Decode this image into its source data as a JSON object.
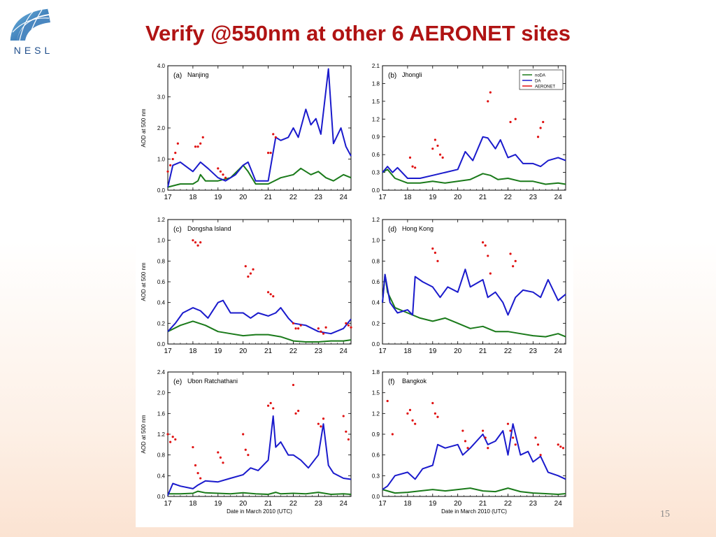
{
  "slide": {
    "title": "Verify @550nm at other 6 AERONET sites",
    "logo_text": "NESL",
    "page_number": "15"
  },
  "colors": {
    "title": "#b01313",
    "noDA": "#1a7a1a",
    "DA": "#1a1acc",
    "AERONET": "#e01010"
  },
  "chart_data": [
    {
      "type": "line",
      "panel": "(a)",
      "site": "Nanjing",
      "ylabel": "AOD at 500 nm",
      "xlabel": "",
      "ylim": [
        0,
        4
      ],
      "yticks": [
        0.0,
        1.0,
        2.0,
        3.0,
        4.0
      ],
      "xlim": [
        17,
        24.3
      ],
      "xticks": [
        17,
        18,
        19,
        20,
        21,
        22,
        23,
        24
      ],
      "show_legend": false,
      "series": [
        {
          "name": "noDA",
          "x": [
            17,
            17.5,
            18,
            18.2,
            18.3,
            18.5,
            19,
            19.5,
            20,
            20.2,
            20.5,
            21,
            21.5,
            22,
            22.3,
            22.7,
            23,
            23.3,
            23.6,
            24,
            24.3
          ],
          "y": [
            0.1,
            0.2,
            0.2,
            0.3,
            0.5,
            0.3,
            0.3,
            0.4,
            0.8,
            0.6,
            0.2,
            0.2,
            0.4,
            0.5,
            0.7,
            0.5,
            0.6,
            0.4,
            0.3,
            0.5,
            0.4
          ]
        },
        {
          "name": "DA",
          "x": [
            17,
            17.2,
            17.5,
            18,
            18.3,
            18.6,
            19,
            19.3,
            19.7,
            20,
            20.2,
            20.5,
            21,
            21.3,
            21.5,
            21.8,
            22,
            22.2,
            22.5,
            22.7,
            22.9,
            23.1,
            23.4,
            23.6,
            23.9,
            24.1,
            24.3
          ],
          "y": [
            0.1,
            0.8,
            0.9,
            0.6,
            0.9,
            0.7,
            0.4,
            0.3,
            0.5,
            0.8,
            0.9,
            0.3,
            0.3,
            1.7,
            1.6,
            1.7,
            2.0,
            1.7,
            2.6,
            2.1,
            2.3,
            1.8,
            3.9,
            1.5,
            2.0,
            1.4,
            1.1
          ]
        },
        {
          "name": "AERONET",
          "x": [
            17.0,
            17.1,
            17.2,
            17.3,
            17.4,
            18.1,
            18.2,
            18.3,
            18.4,
            19.0,
            19.1,
            19.2,
            19.3,
            21.0,
            21.1,
            21.2,
            21.3
          ],
          "y": [
            0.6,
            0.8,
            1.0,
            1.2,
            1.5,
            1.4,
            1.4,
            1.5,
            1.7,
            0.7,
            0.6,
            0.5,
            0.4,
            1.2,
            1.2,
            1.8,
            1.7
          ]
        }
      ]
    },
    {
      "type": "line",
      "panel": "(b)",
      "site": "Jhongli",
      "ylabel": "",
      "xlabel": "",
      "ylim": [
        0,
        2.1
      ],
      "yticks": [
        0.0,
        0.3,
        0.6,
        0.9,
        1.2,
        1.5,
        1.8,
        2.1
      ],
      "xlim": [
        17,
        24.3
      ],
      "xticks": [
        17,
        18,
        19,
        20,
        21,
        22,
        23,
        24
      ],
      "show_legend": true,
      "series": [
        {
          "name": "noDA",
          "x": [
            17,
            17.2,
            17.5,
            18,
            18.5,
            19,
            19.5,
            20,
            20.5,
            21,
            21.3,
            21.6,
            22,
            22.5,
            23,
            23.5,
            24,
            24.3
          ],
          "y": [
            0.3,
            0.35,
            0.2,
            0.12,
            0.12,
            0.15,
            0.12,
            0.15,
            0.18,
            0.28,
            0.25,
            0.18,
            0.2,
            0.15,
            0.15,
            0.1,
            0.12,
            0.1
          ]
        },
        {
          "name": "DA",
          "x": [
            17,
            17.2,
            17.4,
            17.6,
            18,
            18.5,
            19,
            19.5,
            20,
            20.3,
            20.6,
            21,
            21.2,
            21.5,
            21.7,
            22,
            22.3,
            22.6,
            23,
            23.3,
            23.6,
            24,
            24.3
          ],
          "y": [
            0.3,
            0.4,
            0.3,
            0.38,
            0.2,
            0.2,
            0.25,
            0.3,
            0.35,
            0.65,
            0.5,
            0.9,
            0.88,
            0.7,
            0.85,
            0.55,
            0.6,
            0.45,
            0.45,
            0.4,
            0.5,
            0.55,
            0.5
          ]
        },
        {
          "name": "AERONET",
          "x": [
            18.1,
            18.2,
            18.3,
            19.0,
            19.1,
            19.2,
            19.3,
            19.4,
            21.2,
            21.3,
            22.1,
            22.3,
            23.2,
            23.3,
            23.4
          ],
          "y": [
            0.55,
            0.4,
            0.38,
            0.7,
            0.85,
            0.75,
            0.6,
            0.55,
            1.5,
            1.65,
            1.15,
            1.2,
            0.9,
            1.05,
            1.15
          ]
        }
      ]
    },
    {
      "type": "line",
      "panel": "(c)",
      "site": "Dongsha Island",
      "ylabel": "AOD at 500 nm",
      "xlabel": "",
      "ylim": [
        0,
        1.2
      ],
      "yticks": [
        0.0,
        0.2,
        0.4,
        0.6,
        0.8,
        1.0,
        1.2
      ],
      "xlim": [
        17,
        24.3
      ],
      "xticks": [
        17,
        18,
        19,
        20,
        21,
        22,
        23,
        24
      ],
      "show_legend": false,
      "series": [
        {
          "name": "noDA",
          "x": [
            17,
            17.5,
            18,
            18.5,
            19,
            19.5,
            20,
            20.5,
            21,
            21.5,
            22,
            22.5,
            23,
            23.5,
            24,
            24.3
          ],
          "y": [
            0.12,
            0.18,
            0.22,
            0.18,
            0.12,
            0.1,
            0.08,
            0.09,
            0.09,
            0.07,
            0.03,
            0.02,
            0.02,
            0.03,
            0.03,
            0.04
          ]
        },
        {
          "name": "DA",
          "x": [
            17,
            17.3,
            17.6,
            18,
            18.3,
            18.6,
            19,
            19.2,
            19.5,
            20,
            20.3,
            20.6,
            21,
            21.3,
            21.5,
            21.8,
            22,
            22.5,
            23,
            23.5,
            24,
            24.3
          ],
          "y": [
            0.12,
            0.2,
            0.3,
            0.35,
            0.32,
            0.25,
            0.4,
            0.42,
            0.3,
            0.3,
            0.25,
            0.3,
            0.27,
            0.3,
            0.35,
            0.25,
            0.2,
            0.18,
            0.12,
            0.1,
            0.15,
            0.24
          ]
        },
        {
          "name": "AERONET",
          "x": [
            18.0,
            18.1,
            18.2,
            18.3,
            20.1,
            20.2,
            20.3,
            20.4,
            21.0,
            21.1,
            21.2,
            22.0,
            22.1,
            22.2,
            22.3,
            23.0,
            23.1,
            23.2,
            23.3,
            24.1,
            24.2,
            24.3
          ],
          "y": [
            1.0,
            0.98,
            0.95,
            0.98,
            0.75,
            0.65,
            0.68,
            0.72,
            0.5,
            0.48,
            0.46,
            0.2,
            0.15,
            0.15,
            0.18,
            0.15,
            0.12,
            0.1,
            0.16,
            0.2,
            0.18,
            0.16
          ]
        }
      ]
    },
    {
      "type": "line",
      "panel": "(d)",
      "site": "Hong Kong",
      "ylabel": "",
      "xlabel": "",
      "ylim": [
        0,
        1.2
      ],
      "yticks": [
        0.0,
        0.2,
        0.4,
        0.6,
        0.8,
        1.0,
        1.2
      ],
      "xlim": [
        17,
        24.3
      ],
      "xticks": [
        17,
        18,
        19,
        20,
        21,
        22,
        23,
        24
      ],
      "show_legend": false,
      "series": [
        {
          "name": "noDA",
          "x": [
            17,
            17.1,
            17.2,
            17.5,
            18,
            18.5,
            19,
            19.5,
            20,
            20.5,
            21,
            21.5,
            22,
            22.5,
            23,
            23.5,
            24,
            24.3
          ],
          "y": [
            0.4,
            0.67,
            0.5,
            0.35,
            0.3,
            0.25,
            0.22,
            0.25,
            0.2,
            0.15,
            0.17,
            0.12,
            0.12,
            0.1,
            0.08,
            0.07,
            0.1,
            0.07
          ]
        },
        {
          "name": "DA",
          "x": [
            17,
            17.1,
            17.3,
            17.6,
            18,
            18.2,
            18.3,
            18.6,
            19,
            19.3,
            19.6,
            20,
            20.3,
            20.5,
            21,
            21.2,
            21.5,
            21.8,
            22,
            22.3,
            22.6,
            23,
            23.3,
            23.6,
            24,
            24.3
          ],
          "y": [
            0.4,
            0.67,
            0.4,
            0.3,
            0.33,
            0.28,
            0.65,
            0.6,
            0.55,
            0.45,
            0.55,
            0.5,
            0.72,
            0.55,
            0.62,
            0.45,
            0.5,
            0.4,
            0.28,
            0.45,
            0.52,
            0.5,
            0.45,
            0.62,
            0.42,
            0.48
          ]
        },
        {
          "name": "AERONET",
          "x": [
            19.0,
            19.1,
            19.2,
            21.0,
            21.1,
            21.2,
            21.3,
            22.1,
            22.2,
            22.3
          ],
          "y": [
            0.92,
            0.88,
            0.8,
            0.98,
            0.95,
            0.85,
            0.68,
            0.87,
            0.75,
            0.8
          ]
        }
      ]
    },
    {
      "type": "line",
      "panel": "(e)",
      "site": "Ubon Ratchathani",
      "ylabel": "AOD at 500 nm",
      "xlabel": "Date in March 2010 (UTC)",
      "ylim": [
        0,
        2.4
      ],
      "yticks": [
        0.0,
        0.4,
        0.8,
        1.2,
        1.6,
        2.0,
        2.4
      ],
      "xlim": [
        17,
        24.3
      ],
      "xticks": [
        17,
        18,
        19,
        20,
        21,
        22,
        23,
        24
      ],
      "show_legend": false,
      "series": [
        {
          "name": "noDA",
          "x": [
            17,
            17.5,
            18,
            18.2,
            18.5,
            19,
            19.5,
            20,
            20.5,
            21,
            21.3,
            21.5,
            22,
            22.5,
            23,
            23.5,
            24,
            24.3
          ],
          "y": [
            0.05,
            0.05,
            0.06,
            0.1,
            0.07,
            0.06,
            0.05,
            0.07,
            0.05,
            0.04,
            0.08,
            0.05,
            0.06,
            0.05,
            0.08,
            0.04,
            0.05,
            0.04
          ]
        },
        {
          "name": "DA",
          "x": [
            17,
            17.2,
            17.5,
            18,
            18.2,
            18.5,
            19,
            19.5,
            20,
            20.3,
            20.6,
            21,
            21.2,
            21.3,
            21.5,
            21.8,
            22,
            22.3,
            22.6,
            23,
            23.2,
            23.4,
            23.6,
            24,
            24.3
          ],
          "y": [
            0.02,
            0.25,
            0.2,
            0.15,
            0.22,
            0.3,
            0.28,
            0.35,
            0.42,
            0.55,
            0.5,
            0.7,
            1.55,
            0.95,
            1.05,
            0.8,
            0.8,
            0.7,
            0.55,
            0.8,
            1.4,
            0.6,
            0.45,
            0.35,
            0.33
          ]
        },
        {
          "name": "AERONET",
          "x": [
            17.0,
            17.1,
            17.2,
            17.3,
            18.0,
            18.1,
            18.2,
            18.3,
            19.0,
            19.1,
            19.2,
            20.0,
            20.1,
            20.2,
            21.0,
            21.1,
            21.2,
            22.0,
            22.1,
            22.2,
            23.0,
            23.1,
            23.2,
            24.0,
            24.1,
            24.2
          ],
          "y": [
            1.2,
            1.05,
            1.15,
            1.1,
            0.95,
            0.6,
            0.45,
            0.35,
            0.85,
            0.75,
            0.65,
            1.2,
            0.9,
            0.8,
            1.75,
            1.8,
            1.7,
            2.15,
            1.6,
            1.65,
            1.4,
            1.35,
            1.5,
            1.55,
            1.25,
            1.1
          ]
        }
      ]
    },
    {
      "type": "line",
      "panel": "(f)",
      "site": "Bangkok",
      "ylabel": "",
      "xlabel": "Date in March 2010 (UTC)",
      "ylim": [
        0,
        1.8
      ],
      "yticks": [
        0.0,
        0.3,
        0.6,
        0.9,
        1.2,
        1.5,
        1.8
      ],
      "xlim": [
        17,
        24.3
      ],
      "xticks": [
        17,
        18,
        19,
        20,
        21,
        22,
        23,
        24
      ],
      "show_legend": false,
      "series": [
        {
          "name": "noDA",
          "x": [
            17,
            17.5,
            18,
            18.5,
            19,
            19.5,
            20,
            20.5,
            21,
            21.5,
            22,
            22.5,
            23,
            23.5,
            24,
            24.3
          ],
          "y": [
            0.1,
            0.05,
            0.06,
            0.08,
            0.1,
            0.08,
            0.1,
            0.12,
            0.08,
            0.07,
            0.12,
            0.07,
            0.05,
            0.04,
            0.03,
            0.04
          ]
        },
        {
          "name": "DA",
          "x": [
            17,
            17.2,
            17.5,
            18,
            18.3,
            18.6,
            19,
            19.2,
            19.5,
            20,
            20.2,
            20.5,
            21,
            21.2,
            21.5,
            21.8,
            22,
            22.2,
            22.5,
            22.8,
            23,
            23.3,
            23.6,
            24,
            24.3
          ],
          "y": [
            0.1,
            0.15,
            0.3,
            0.35,
            0.25,
            0.4,
            0.45,
            0.75,
            0.7,
            0.75,
            0.6,
            0.7,
            0.9,
            0.75,
            0.8,
            0.95,
            0.6,
            1.05,
            0.6,
            0.65,
            0.5,
            0.58,
            0.35,
            0.3,
            0.25
          ]
        },
        {
          "name": "AERONET",
          "x": [
            17.2,
            17.4,
            18.0,
            18.1,
            18.2,
            18.3,
            19.0,
            19.1,
            19.2,
            20.2,
            20.3,
            20.4,
            21.0,
            21.1,
            21.2,
            22.0,
            22.1,
            22.2,
            22.3,
            23.1,
            23.2,
            23.3,
            24.0,
            24.1,
            24.2
          ],
          "y": [
            1.38,
            0.9,
            1.2,
            1.25,
            1.1,
            1.05,
            1.35,
            1.2,
            1.15,
            0.95,
            0.8,
            0.7,
            0.95,
            0.85,
            0.7,
            1.05,
            0.95,
            0.85,
            0.75,
            0.85,
            0.75,
            0.6,
            0.75,
            0.72,
            0.7
          ]
        }
      ]
    }
  ]
}
